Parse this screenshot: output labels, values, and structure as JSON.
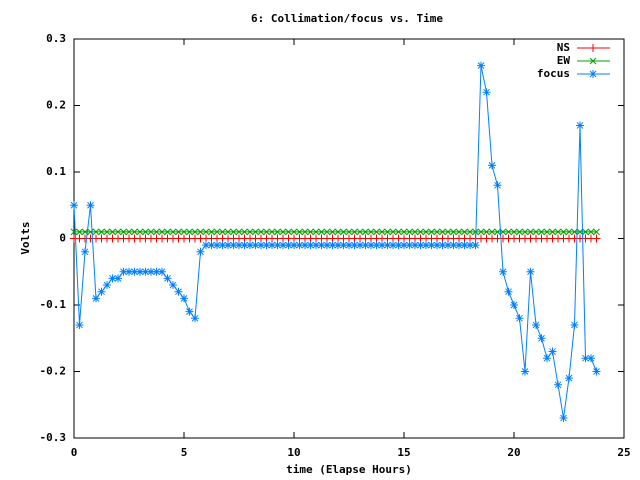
{
  "chart_data": {
    "type": "line",
    "title": "6: Collimation/focus vs. Time",
    "xlabel": "time (Elapse Hours)",
    "ylabel": "Volts",
    "xlim": [
      0,
      25
    ],
    "xticks": [
      0,
      5,
      10,
      15,
      20,
      25
    ],
    "ylim": [
      -0.3,
      0.3
    ],
    "yticks": [
      0.3,
      0.2,
      0.1,
      0,
      -0.1,
      -0.2,
      -0.3
    ],
    "legend": "top-right",
    "x": [
      0,
      0.25,
      0.5,
      0.75,
      1,
      1.25,
      1.5,
      1.75,
      2,
      2.25,
      2.5,
      2.75,
      3,
      3.25,
      3.5,
      3.75,
      4,
      4.25,
      4.5,
      4.75,
      5,
      5.25,
      5.5,
      5.75,
      6,
      6.25,
      6.5,
      6.75,
      7,
      7.25,
      7.5,
      7.75,
      8,
      8.25,
      8.5,
      8.75,
      9,
      9.25,
      9.5,
      9.75,
      10,
      10.25,
      10.5,
      10.75,
      11,
      11.25,
      11.5,
      11.75,
      12,
      12.25,
      12.5,
      12.75,
      13,
      13.25,
      13.5,
      13.75,
      14,
      14.25,
      14.5,
      14.75,
      15,
      15.25,
      15.5,
      15.75,
      16,
      16.25,
      16.5,
      16.75,
      17,
      17.25,
      17.5,
      17.75,
      18,
      18.25,
      18.5,
      18.75,
      19,
      19.25,
      19.5,
      19.75,
      20,
      20.25,
      20.5,
      20.75,
      21,
      21.25,
      21.5,
      21.75,
      22,
      22.25,
      22.5,
      22.75,
      23,
      23.25,
      23.5,
      23.75
    ],
    "series": [
      {
        "name": "NS",
        "color": "#ff0000",
        "marker": "plus",
        "values": [
          0,
          0,
          0,
          0,
          0,
          0,
          0,
          0,
          0,
          0,
          0,
          0,
          0,
          0,
          0,
          0,
          0,
          0,
          0,
          0,
          0,
          0,
          0,
          0,
          0,
          0,
          0,
          0,
          0,
          0,
          0,
          0,
          0,
          0,
          0,
          0,
          0,
          0,
          0,
          0,
          0,
          0,
          0,
          0,
          0,
          0,
          0,
          0,
          0,
          0,
          0,
          0,
          0,
          0,
          0,
          0,
          0,
          0,
          0,
          0,
          0,
          0,
          0,
          0,
          0,
          0,
          0,
          0,
          0,
          0,
          0,
          0,
          0,
          0,
          0,
          0,
          0,
          0,
          0,
          0,
          0,
          0,
          0,
          0,
          0,
          0,
          0,
          0,
          0,
          0,
          0,
          0,
          0,
          0,
          0,
          0
        ]
      },
      {
        "name": "EW",
        "color": "#00a000",
        "marker": "cross",
        "values": [
          0.01,
          0.01,
          0.01,
          0.01,
          0.01,
          0.01,
          0.01,
          0.01,
          0.01,
          0.01,
          0.01,
          0.01,
          0.01,
          0.01,
          0.01,
          0.01,
          0.01,
          0.01,
          0.01,
          0.01,
          0.01,
          0.01,
          0.01,
          0.01,
          0.01,
          0.01,
          0.01,
          0.01,
          0.01,
          0.01,
          0.01,
          0.01,
          0.01,
          0.01,
          0.01,
          0.01,
          0.01,
          0.01,
          0.01,
          0.01,
          0.01,
          0.01,
          0.01,
          0.01,
          0.01,
          0.01,
          0.01,
          0.01,
          0.01,
          0.01,
          0.01,
          0.01,
          0.01,
          0.01,
          0.01,
          0.01,
          0.01,
          0.01,
          0.01,
          0.01,
          0.01,
          0.01,
          0.01,
          0.01,
          0.01,
          0.01,
          0.01,
          0.01,
          0.01,
          0.01,
          0.01,
          0.01,
          0.01,
          0.01,
          0.01,
          0.01,
          0.01,
          0.01,
          0.01,
          0.01,
          0.01,
          0.01,
          0.01,
          0.01,
          0.01,
          0.01,
          0.01,
          0.01,
          0.01,
          0.01,
          0.01,
          0.01,
          0.01,
          0.01,
          0.01,
          0.01
        ]
      },
      {
        "name": "focus",
        "color": "#0080ff",
        "marker": "star",
        "values": [
          0.05,
          -0.13,
          -0.02,
          0.05,
          -0.09,
          -0.08,
          -0.07,
          -0.06,
          -0.06,
          -0.05,
          -0.05,
          -0.05,
          -0.05,
          -0.05,
          -0.05,
          -0.05,
          -0.05,
          -0.06,
          -0.07,
          -0.08,
          -0.09,
          -0.11,
          -0.12,
          -0.02,
          -0.01,
          -0.01,
          -0.01,
          -0.01,
          -0.01,
          -0.01,
          -0.01,
          -0.01,
          -0.01,
          -0.01,
          -0.01,
          -0.01,
          -0.01,
          -0.01,
          -0.01,
          -0.01,
          -0.01,
          -0.01,
          -0.01,
          -0.01,
          -0.01,
          -0.01,
          -0.01,
          -0.01,
          -0.01,
          -0.01,
          -0.01,
          -0.01,
          -0.01,
          -0.01,
          -0.01,
          -0.01,
          -0.01,
          -0.01,
          -0.01,
          -0.01,
          -0.01,
          -0.01,
          -0.01,
          -0.01,
          -0.01,
          -0.01,
          -0.01,
          -0.01,
          -0.01,
          -0.01,
          -0.01,
          -0.01,
          -0.01,
          -0.01,
          0.26,
          0.22,
          0.11,
          0.08,
          -0.05,
          -0.08,
          -0.1,
          -0.12,
          -0.2,
          -0.05,
          -0.13,
          -0.15,
          -0.18,
          -0.17,
          -0.22,
          -0.27,
          -0.21,
          -0.13,
          0.17,
          -0.18,
          -0.18,
          -0.2
        ]
      }
    ]
  }
}
